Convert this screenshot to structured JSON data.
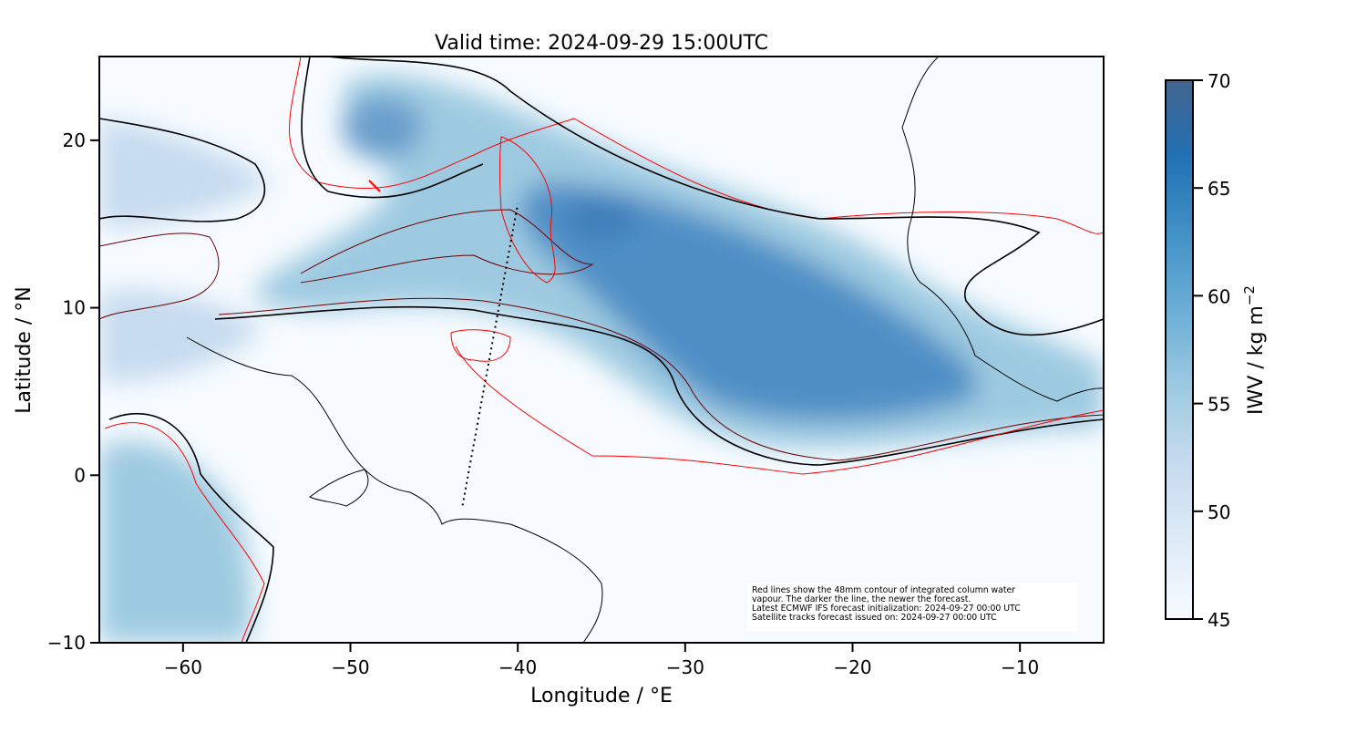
{
  "title": "Valid time: 2024-09-29 15:00UTC",
  "note": {
    "lines": [
      "Red lines show the 48mm contour of integrated column water",
      "vapour. The darker the line, the newer the forecast.",
      "Latest ECMWF IFS forecast initialization: 2024-09-27 00:00 UTC",
      "Satellite tracks forecast issued on: 2024-09-27 00:00 UTC"
    ]
  },
  "chart_data": {
    "type": "heatmap",
    "title": "Valid time: 2024-09-29 15:00UTC",
    "xlabel": "Longitude / °E",
    "ylabel": "Latitude / °N",
    "xlim": [
      -65,
      -5
    ],
    "ylim": [
      -10,
      25
    ],
    "xticks": [
      -60,
      -50,
      -40,
      -30,
      -20,
      -10
    ],
    "yticks": [
      -10,
      0,
      10,
      20
    ],
    "colorbar": {
      "label": "IWV / kg m",
      "label_exponent": "−2",
      "range": [
        45,
        70
      ],
      "ticks": [
        45,
        50,
        55,
        60,
        65,
        70
      ],
      "colormap": [
        "#f7fbff",
        "#deebf7",
        "#c6dbef",
        "#9ecae1",
        "#6baed6",
        "#4292c6",
        "#2171b5",
        "#44648f"
      ]
    },
    "satellite_track": {
      "start": [
        -43.3,
        -1.8
      ],
      "end": [
        -40.0,
        16.2
      ]
    },
    "contour_color_newest": "#000000",
    "contour_color_older": "#ff0000"
  }
}
